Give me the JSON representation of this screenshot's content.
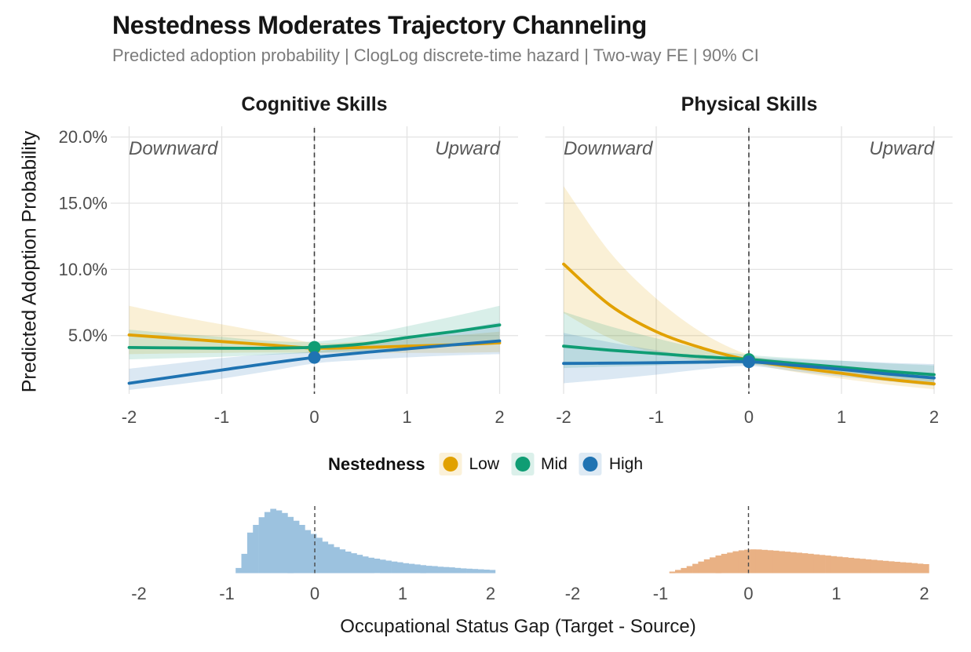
{
  "header": {
    "title": "Nestedness Moderates Trajectory Channeling",
    "subtitle": "Predicted adoption probability | ClogLog discrete-time hazard | Two-way FE | 90% CI"
  },
  "legend": {
    "title": "Nestedness",
    "items": [
      {
        "label": "Low",
        "color": "#E1A100"
      },
      {
        "label": "Mid",
        "color": "#109D74"
      },
      {
        "label": "High",
        "color": "#1F73B2"
      }
    ]
  },
  "chart_data": {
    "type": "line",
    "title": "Nestedness Moderates Trajectory Channeling",
    "subtitle": "Predicted adoption probability | ClogLog discrete-time hazard | Two-way FE | 90% CI",
    "ylabel": "Predicted Adoption Probability",
    "xlabel": "Occupational Status Gap (Target - Source)",
    "legend_title": "Nestedness",
    "ci_level": "90% CI",
    "grid": "major only, light gray",
    "legend_position": "bottom center",
    "x": [
      -2,
      -1.5,
      -1,
      -0.5,
      0,
      0.5,
      1,
      1.5,
      2
    ],
    "x_ticks": [
      -2,
      -1,
      0,
      1,
      2
    ],
    "y_ticks": [
      5,
      10,
      15,
      20
    ],
    "y_tick_labels": [
      "5.0%",
      "10.0%",
      "15.0%",
      "20.0%"
    ],
    "ylim": [
      0.6,
      20.9
    ],
    "xlim": [
      -2.2,
      2.2
    ],
    "reference_line_x": 0,
    "panels": [
      {
        "title": "Cognitive Skills",
        "annotations": {
          "left": "Downward",
          "right": "Upward"
        },
        "series": [
          {
            "name": "Low",
            "color": "#E1A100",
            "values": [
              5.05,
              4.8,
              4.55,
              4.3,
              4.05,
              4.1,
              4.2,
              4.3,
              4.45
            ],
            "upper": [
              7.25,
              6.5,
              5.85,
              5.2,
              4.45,
              4.55,
              4.75,
              5.0,
              5.3
            ],
            "lower": [
              3.6,
              3.65,
              3.7,
              3.72,
              3.7,
              3.7,
              3.7,
              3.7,
              3.75
            ],
            "point_at_zero": 4.05
          },
          {
            "name": "Mid",
            "color": "#109D74",
            "values": [
              4.1,
              4.07,
              4.05,
              4.05,
              4.12,
              4.35,
              4.85,
              5.3,
              5.8
            ],
            "upper": [
              5.45,
              5.15,
              4.9,
              4.6,
              4.55,
              5.0,
              5.7,
              6.45,
              7.25
            ],
            "lower": [
              3.2,
              3.3,
              3.4,
              3.55,
              3.7,
              3.85,
              4.1,
              4.3,
              4.55
            ],
            "point_at_zero": 4.12
          },
          {
            "name": "High",
            "color": "#1F73B2",
            "values": [
              1.4,
              1.9,
              2.4,
              2.9,
              3.35,
              3.7,
              4.0,
              4.3,
              4.6
            ],
            "upper": [
              2.5,
              2.9,
              3.3,
              3.6,
              3.8,
              4.3,
              4.85,
              5.4,
              6.0
            ],
            "lower": [
              0.9,
              1.3,
              1.75,
              2.3,
              2.9,
              3.15,
              3.35,
              3.5,
              3.6
            ],
            "point_at_zero": 3.35
          }
        ]
      },
      {
        "title": "Physical Skills",
        "annotations": {
          "left": "Downward",
          "right": "Upward"
        },
        "series": [
          {
            "name": "Low",
            "color": "#E1A100",
            "values": [
              10.4,
              7.3,
              5.3,
              4.05,
              3.15,
              2.6,
              2.15,
              1.7,
              1.35
            ],
            "upper": [
              16.3,
              11.3,
              7.8,
              5.2,
              3.55,
              3.0,
              2.6,
              2.3,
              2.0
            ],
            "lower": [
              6.7,
              4.8,
              3.7,
              3.1,
              2.85,
              2.25,
              1.75,
              1.3,
              0.95
            ],
            "point_at_zero": 3.15
          },
          {
            "name": "Mid",
            "color": "#109D74",
            "values": [
              4.2,
              3.9,
              3.65,
              3.4,
              3.2,
              2.9,
              2.6,
              2.3,
              2.05
            ],
            "upper": [
              6.8,
              5.7,
              4.8,
              4.0,
              3.55,
              3.3,
              3.1,
              2.9,
              2.75
            ],
            "lower": [
              2.55,
              2.65,
              2.75,
              2.85,
              2.85,
              2.5,
              2.15,
              1.8,
              1.5
            ],
            "point_at_zero": 3.2
          },
          {
            "name": "High",
            "color": "#1F73B2",
            "values": [
              2.9,
              2.92,
              2.95,
              3.0,
              3.02,
              2.75,
              2.45,
              2.1,
              1.8
            ],
            "upper": [
              5.2,
              4.5,
              3.9,
              3.4,
              3.35,
              3.2,
              3.1,
              2.95,
              2.85
            ],
            "lower": [
              1.4,
              1.7,
              2.05,
              2.45,
              2.7,
              2.3,
              1.9,
              1.55,
              1.2
            ],
            "point_at_zero": 3.02
          }
        ]
      }
    ],
    "histograms": [
      {
        "panel": "Cognitive Skills",
        "color": "#9CC2DF",
        "bin_start": -0.9,
        "bin_width": 0.0656,
        "rel_heights": [
          0.08,
          0.3,
          0.63,
          0.75,
          0.87,
          0.95,
          1.0,
          0.975,
          0.935,
          0.875,
          0.815,
          0.75,
          0.67,
          0.61,
          0.55,
          0.49,
          0.45,
          0.405,
          0.37,
          0.335,
          0.31,
          0.285,
          0.26,
          0.24,
          0.225,
          0.21,
          0.195,
          0.18,
          0.17,
          0.155,
          0.145,
          0.135,
          0.125,
          0.115,
          0.11,
          0.1,
          0.095,
          0.09,
          0.082,
          0.075,
          0.07,
          0.065,
          0.06,
          0.055,
          0.05
        ]
      },
      {
        "panel": "Physical Skills",
        "color": "#E9B184",
        "bin_start": -0.9,
        "bin_width": 0.0656,
        "rel_heights": [
          0.025,
          0.05,
          0.08,
          0.11,
          0.145,
          0.18,
          0.215,
          0.245,
          0.275,
          0.3,
          0.32,
          0.34,
          0.355,
          0.365,
          0.37,
          0.368,
          0.362,
          0.356,
          0.35,
          0.342,
          0.334,
          0.326,
          0.318,
          0.31,
          0.301,
          0.292,
          0.283,
          0.274,
          0.265,
          0.256,
          0.247,
          0.239,
          0.231,
          0.223,
          0.215,
          0.207,
          0.199,
          0.191,
          0.184,
          0.177,
          0.17,
          0.163,
          0.156,
          0.148,
          0.14
        ]
      }
    ]
  }
}
